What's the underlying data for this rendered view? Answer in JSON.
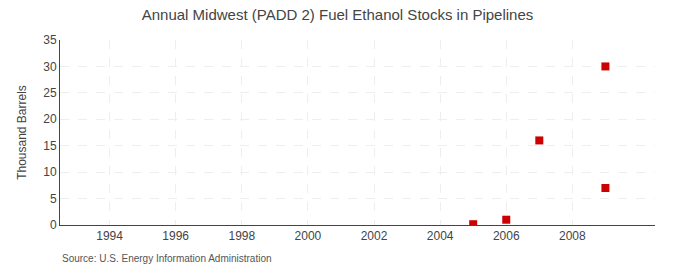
{
  "chart_data": {
    "type": "scatter",
    "title": "Annual Midwest (PADD 2) Fuel Ethanol Stocks in Pipelines",
    "ylabel": "Thousand Barrels",
    "annotations": [
      "Source: U.S. Energy Information Administration"
    ],
    "x": [
      2005,
      2006,
      2007,
      2009,
      2009
    ],
    "values": [
      0.15,
      1.0,
      16.0,
      30.0,
      7.0
    ],
    "color": "#cc0000",
    "marker": "square",
    "xlim": [
      1992.5,
      2010.5
    ],
    "xticks": [
      1994,
      1996,
      1998,
      2000,
      2002,
      2004,
      2006,
      2008
    ],
    "ylim": [
      0,
      35
    ],
    "yticks": [
      0,
      5,
      10,
      15,
      20,
      25,
      30,
      35
    ],
    "grid": true
  }
}
